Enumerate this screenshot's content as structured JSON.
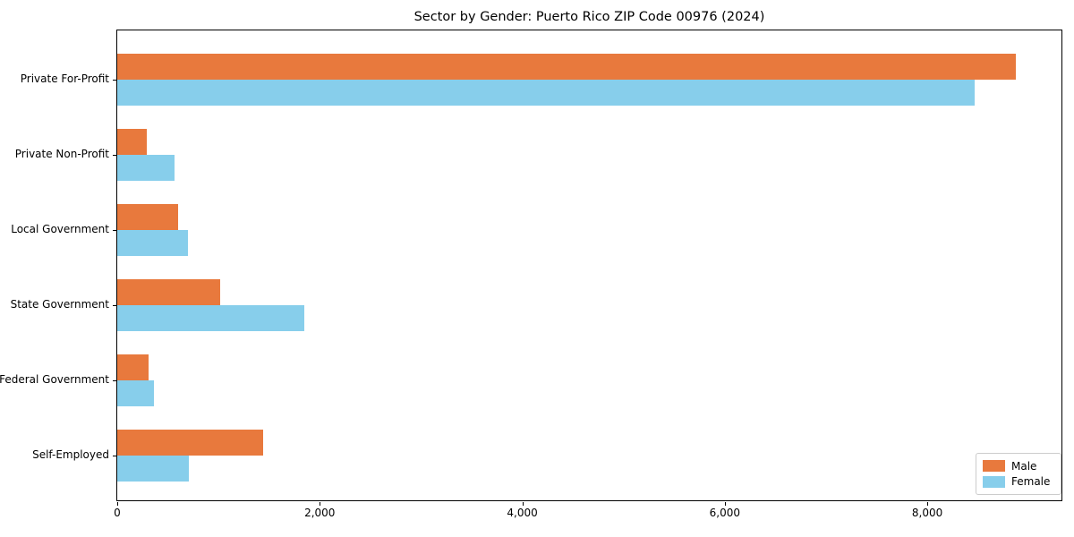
{
  "chart_data": {
    "type": "bar",
    "orientation": "horizontal",
    "title": "Sector by Gender: Puerto Rico ZIP Code 00976 (2024)",
    "categories": [
      "Private For-Profit",
      "Private Non-Profit",
      "Local Government",
      "State Government",
      "Federal Government",
      "Self-Employed"
    ],
    "series": [
      {
        "name": "Male",
        "color": "#e8793d",
        "values": [
          8870,
          290,
          600,
          1020,
          310,
          1440
        ]
      },
      {
        "name": "Female",
        "color": "#87ceeb",
        "values": [
          8465,
          565,
          700,
          1845,
          360,
          705
        ]
      }
    ],
    "xlabel": "",
    "ylabel": "",
    "xlim": [
      0,
      9325
    ],
    "xticks": [
      0,
      2000,
      4000,
      6000,
      8000
    ],
    "xtick_labels": [
      "0",
      "2,000",
      "4,000",
      "6,000",
      "8,000"
    ],
    "grid": false,
    "legend_position": "lower right",
    "legend_labels": [
      "Male",
      "Female"
    ]
  }
}
